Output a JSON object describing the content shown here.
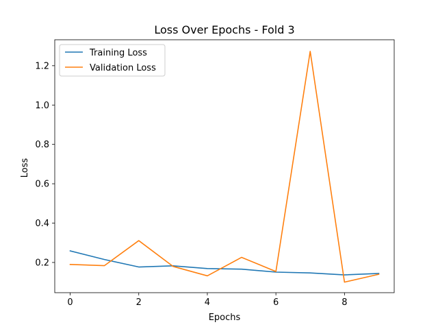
{
  "chart_data": {
    "type": "line",
    "title": "Loss Over Epochs - Fold 3",
    "xlabel": "Epochs",
    "ylabel": "Loss",
    "x": [
      0,
      1,
      2,
      3,
      4,
      5,
      6,
      7,
      8,
      9
    ],
    "xticks": [
      0,
      2,
      4,
      6,
      8
    ],
    "xlim": [
      -0.45,
      9.45
    ],
    "yticks": [
      0.2,
      0.4,
      0.6,
      0.8,
      1.0,
      1.2
    ],
    "ytick_labels": [
      "0.2",
      "0.4",
      "0.6",
      "0.8",
      "1.0",
      "1.2"
    ],
    "ylim": [
      0.0465,
      1.3318
    ],
    "grid": false,
    "legend_position": "top-left",
    "series": [
      {
        "name": "Training Loss",
        "color": "#1f77b4",
        "values": [
          0.259,
          0.215,
          0.177,
          0.183,
          0.169,
          0.166,
          0.151,
          0.147,
          0.137,
          0.144
        ]
      },
      {
        "name": "Validation Loss",
        "color": "#ff7f0e",
        "values": [
          0.19,
          0.184,
          0.311,
          0.18,
          0.132,
          0.226,
          0.154,
          1.273,
          0.1,
          0.14
        ]
      }
    ]
  }
}
